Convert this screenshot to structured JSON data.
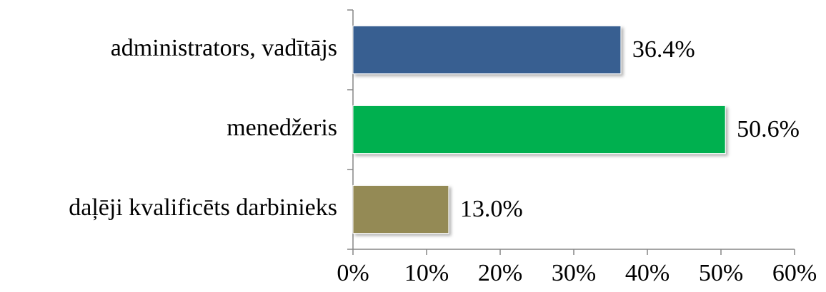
{
  "chart_data": {
    "type": "bar",
    "orientation": "horizontal",
    "categories": [
      "administrators, vadītājs",
      "menedžeris",
      "daļēji kvalificēts darbinieks"
    ],
    "values": [
      36.4,
      50.6,
      13.0
    ],
    "value_labels": [
      "36.4%",
      "50.6%",
      "13.0%"
    ],
    "colors": [
      "#375f91",
      "#00b050",
      "#948a54"
    ],
    "xlim": [
      0,
      60
    ],
    "xticks": [
      {
        "value": 0,
        "label": "0%"
      },
      {
        "value": 10,
        "label": "10%"
      },
      {
        "value": 20,
        "label": "20%"
      },
      {
        "value": 30,
        "label": "30%"
      },
      {
        "value": 40,
        "label": "40%"
      },
      {
        "value": 50,
        "label": "50%"
      },
      {
        "value": 60,
        "label": "60%"
      }
    ],
    "grid": false
  }
}
